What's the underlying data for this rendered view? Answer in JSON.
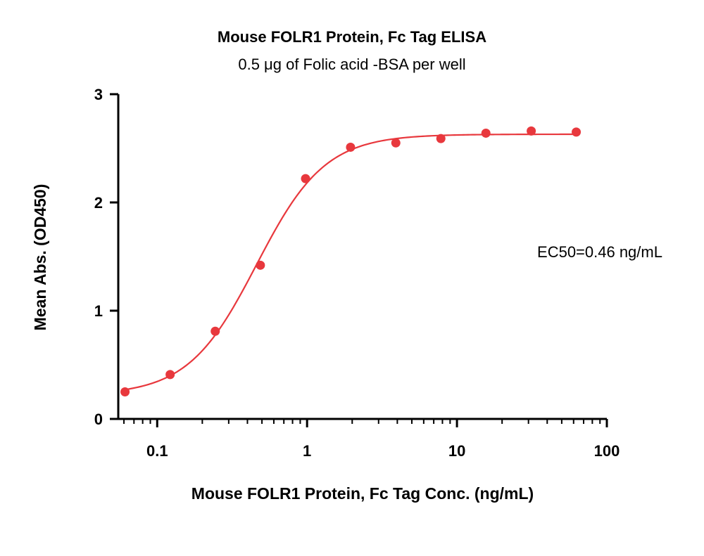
{
  "chart_data": {
    "type": "scatter",
    "title": "Mouse FOLR1 Protein, Fc Tag ELISA",
    "subtitle": "0.5 μg of Folic acid -BSA per well",
    "xlabel": "Mouse FOLR1 Protein, Fc Tag Conc. (ng/mL)",
    "ylabel": "Mean Abs. (OD450)",
    "x_scale": "log",
    "xlim": [
      0.055,
      100
    ],
    "ylim": [
      0,
      3
    ],
    "x_ticks": [
      {
        "value": 0.1,
        "label": "0.1"
      },
      {
        "value": 1,
        "label": "1"
      },
      {
        "value": 10,
        "label": "10"
      },
      {
        "value": 100,
        "label": "100"
      }
    ],
    "y_ticks": [
      {
        "value": 0,
        "label": "0"
      },
      {
        "value": 1,
        "label": "1"
      },
      {
        "value": 2,
        "label": "2"
      },
      {
        "value": 3,
        "label": "3"
      }
    ],
    "grid": false,
    "series": [
      {
        "color": "#e8383d",
        "x": [
          0.061,
          0.122,
          0.244,
          0.488,
          0.977,
          1.95,
          3.91,
          7.81,
          15.6,
          31.3,
          62.5
        ],
        "y": [
          0.25,
          0.41,
          0.81,
          1.42,
          2.22,
          2.51,
          2.55,
          2.59,
          2.64,
          2.66,
          2.65
        ]
      }
    ],
    "fit": {
      "model": "4PL",
      "bottom": 0.22,
      "top": 2.63,
      "ec50": 0.46,
      "hill": 1.9
    },
    "annotation": "EC50=0.46 ng/mL"
  }
}
